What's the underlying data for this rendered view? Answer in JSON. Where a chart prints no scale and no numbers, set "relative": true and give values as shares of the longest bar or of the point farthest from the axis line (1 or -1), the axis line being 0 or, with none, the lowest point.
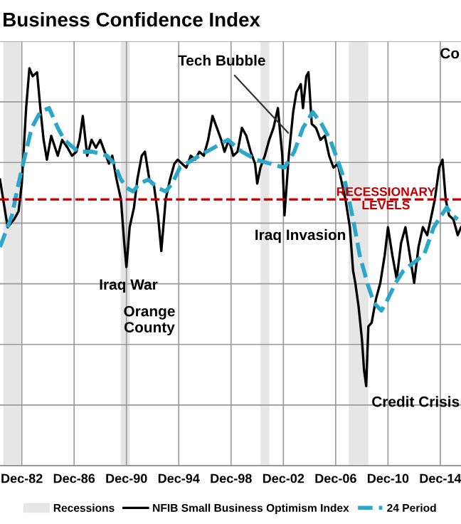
{
  "chart_data": {
    "type": "line",
    "title": "Business Confidence Index",
    "relative": true,
    "xlim": [
      "1981-04",
      "2016-07"
    ],
    "xticks": [
      {
        "value": "1982-12",
        "label": "Dec-82"
      },
      {
        "value": "1986-12",
        "label": "Dec-86"
      },
      {
        "value": "1990-12",
        "label": "Dec-90"
      },
      {
        "value": "1994-12",
        "label": "Dec-94"
      },
      {
        "value": "1998-12",
        "label": "Dec-98"
      },
      {
        "value": "2002-12",
        "label": "Dec-02"
      },
      {
        "value": "2006-12",
        "label": "Dec-06"
      },
      {
        "value": "2010-12",
        "label": "Dec-10"
      },
      {
        "value": "2014-12",
        "label": "Dec-14"
      }
    ],
    "tick_labels": "x",
    "grid": true,
    "legend": "bottom",
    "series": [
      {
        "name": "NFIB Small Business Optimism Index",
        "color": "#000000",
        "line_style": "solid",
        "x": [
          "1981-04",
          "1981-11",
          "1982-05",
          "1982-09",
          "1982-12",
          "1983-04",
          "1983-07",
          "1983-10",
          "1984-02",
          "1984-05",
          "1984-08",
          "1984-11",
          "1985-03",
          "1985-09",
          "1986-01",
          "1986-06",
          "1986-10",
          "1987-02",
          "1987-05",
          "1987-08",
          "1987-12",
          "1988-04",
          "1988-08",
          "1988-12",
          "1989-04",
          "1989-08",
          "1989-11",
          "1990-03",
          "1990-07",
          "1990-10",
          "1990-12",
          "1991-03",
          "1991-07",
          "1991-10",
          "1992-02",
          "1992-05",
          "1992-09",
          "1993-01",
          "1993-05",
          "1993-08",
          "1993-12",
          "1994-04",
          "1994-08",
          "1994-11",
          "1995-03",
          "1995-07",
          "1995-11",
          "1996-03",
          "1996-07",
          "1996-11",
          "1997-03",
          "1997-07",
          "1997-11",
          "1998-03",
          "1998-06",
          "1998-10",
          "1999-02",
          "1999-06",
          "1999-10",
          "2000-02",
          "2000-06",
          "2000-10",
          "2000-12",
          "2001-03",
          "2001-07",
          "2001-11",
          "2002-03",
          "2002-07",
          "2002-11",
          "2003-01",
          "2003-05",
          "2003-09",
          "2003-12",
          "2004-04",
          "2004-06",
          "2004-09",
          "2004-11",
          "2005-02",
          "2005-06",
          "2005-10",
          "2006-02",
          "2006-06",
          "2006-10",
          "2007-02",
          "2007-05",
          "2007-09",
          "2008-01",
          "2008-04",
          "2008-06",
          "2008-09",
          "2008-12",
          "2009-02",
          "2009-04",
          "2009-06",
          "2009-09",
          "2010-01",
          "2010-05",
          "2010-09",
          "2010-12",
          "2011-04",
          "2011-08",
          "2011-12",
          "2012-04",
          "2012-08",
          "2012-12",
          "2013-04",
          "2013-08",
          "2013-12",
          "2014-04",
          "2014-07",
          "2014-11",
          "2015-02",
          "2015-05",
          "2015-08",
          "2015-12",
          "2016-04",
          "2016-07"
        ],
        "values": [
          0.72,
          0.6,
          0.62,
          0.64,
          0.71,
          0.9,
          1.0,
          0.98,
          0.99,
          0.9,
          0.82,
          0.77,
          0.83,
          0.78,
          0.82,
          0.8,
          0.78,
          0.79,
          0.82,
          0.88,
          0.78,
          0.82,
          0.8,
          0.82,
          0.79,
          0.76,
          0.78,
          0.72,
          0.67,
          0.56,
          0.5,
          0.6,
          0.65,
          0.72,
          0.78,
          0.79,
          0.72,
          0.71,
          0.63,
          0.54,
          0.67,
          0.72,
          0.76,
          0.77,
          0.76,
          0.75,
          0.78,
          0.77,
          0.79,
          0.78,
          0.82,
          0.88,
          0.85,
          0.82,
          0.79,
          0.82,
          0.78,
          0.79,
          0.85,
          0.83,
          0.79,
          0.76,
          0.71,
          0.75,
          0.78,
          0.82,
          0.85,
          0.9,
          0.78,
          0.63,
          0.78,
          0.89,
          0.94,
          0.96,
          0.9,
          0.98,
          0.99,
          0.86,
          0.85,
          0.82,
          0.83,
          0.78,
          0.75,
          0.76,
          0.72,
          0.67,
          0.6,
          0.49,
          0.46,
          0.4,
          0.32,
          0.24,
          0.2,
          0.35,
          0.36,
          0.42,
          0.46,
          0.53,
          0.6,
          0.53,
          0.47,
          0.56,
          0.6,
          0.53,
          0.46,
          0.55,
          0.6,
          0.58,
          0.63,
          0.67,
          0.75,
          0.77,
          0.67,
          0.63,
          0.62,
          0.58,
          0.6
        ]
      },
      {
        "name": "24 Period",
        "color": "#2aa7c9",
        "line_style": "dashed",
        "x": [
          "1981-04",
          "1982-03",
          "1982-09",
          "1983-03",
          "1983-09",
          "1984-05",
          "1985-01",
          "1985-09",
          "1986-03",
          "1987-04",
          "1988-05",
          "1989-06",
          "1990-01",
          "1990-07",
          "1990-12",
          "1991-06",
          "1991-12",
          "1992-08",
          "1993-04",
          "1993-12",
          "1994-06",
          "1995-01",
          "1995-07",
          "1996-07",
          "1997-08",
          "1998-09",
          "1999-10",
          "2000-11",
          "2001-12",
          "2003-01",
          "2003-10",
          "2004-06",
          "2005-03",
          "2005-11",
          "2006-07",
          "2007-03",
          "2007-09",
          "2008-04",
          "2008-10",
          "2009-05",
          "2009-11",
          "2010-06",
          "2010-12",
          "2011-07",
          "2012-02",
          "2012-11",
          "2013-09",
          "2014-06",
          "2015-01",
          "2015-06",
          "2015-11",
          "2016-04"
        ],
        "values": [
          0.55,
          0.63,
          0.71,
          0.78,
          0.85,
          0.89,
          0.9,
          0.85,
          0.82,
          0.79,
          0.79,
          0.78,
          0.76,
          0.72,
          0.7,
          0.69,
          0.71,
          0.72,
          0.7,
          0.69,
          0.71,
          0.75,
          0.76,
          0.78,
          0.8,
          0.82,
          0.79,
          0.77,
          0.76,
          0.75,
          0.79,
          0.85,
          0.89,
          0.86,
          0.82,
          0.76,
          0.71,
          0.62,
          0.53,
          0.46,
          0.41,
          0.39,
          0.42,
          0.46,
          0.49,
          0.51,
          0.53,
          0.6,
          0.63,
          0.65,
          0.63,
          0.62
        ]
      }
    ],
    "bands": [
      {
        "axis": "x",
        "from": "1981-07",
        "to": "1982-11",
        "label": "Recessions",
        "color": "#e6e6e6"
      },
      {
        "axis": "x",
        "from": "1990-07",
        "to": "1991-03",
        "color": "#e6e6e6"
      },
      {
        "axis": "x",
        "from": "2001-03",
        "to": "2001-11",
        "color": "#e6e6e6"
      },
      {
        "axis": "x",
        "from": "2007-12",
        "to": "2009-06",
        "color": "#e6e6e6"
      }
    ],
    "ref_lines": [
      {
        "axis": "y",
        "value": 0.67,
        "label": "RECESSIONARY\nLEVELS",
        "color": "#c00000",
        "line_style": "dashed"
      }
    ],
    "annotations": [
      {
        "text": "Tech Bubble",
        "x": "2003-07",
        "y": 0.83
      },
      {
        "text": "Iraq War",
        "x": "1990-12",
        "y": 0.5
      },
      "Orange\nCounty",
      {
        "text": "Iraq Invasion",
        "x": "2003-01",
        "y": 0.63
      },
      {
        "text": "Credit Crisis",
        "x": "2009-04",
        "y": 0.2
      },
      "Co"
    ]
  }
}
